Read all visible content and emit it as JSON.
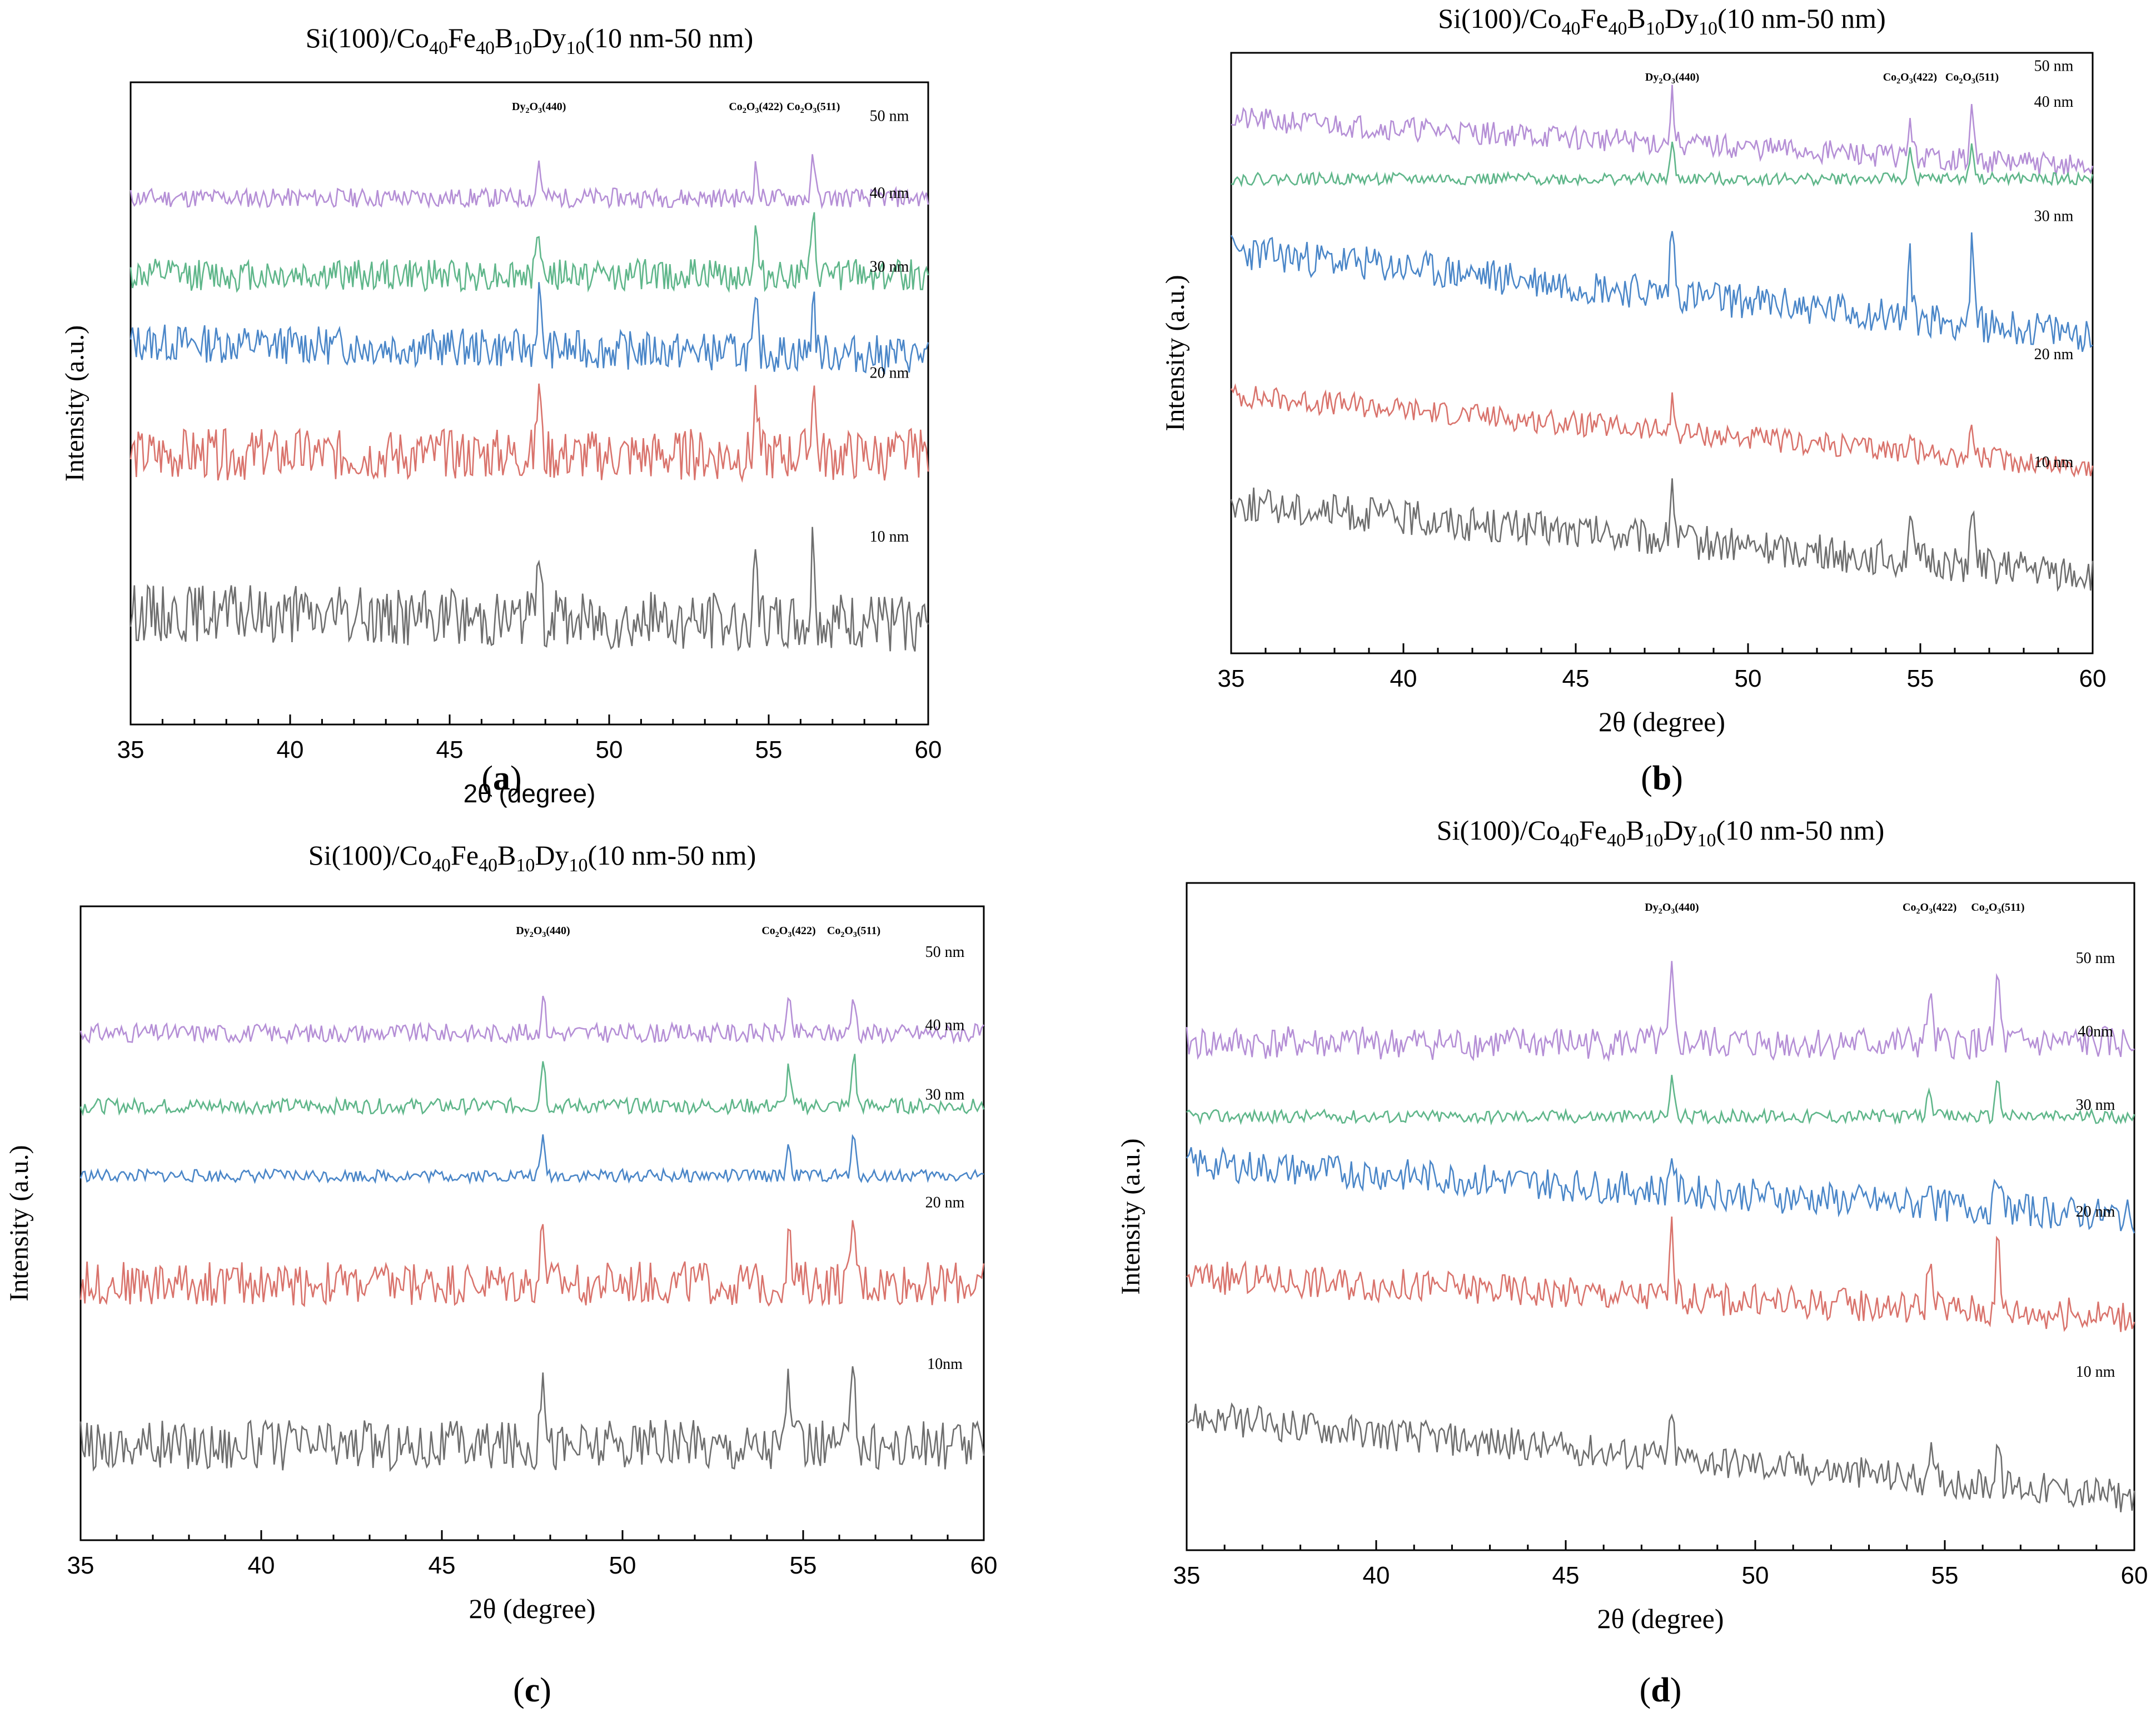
{
  "chart_data": [
    {
      "panel_label": "(a)",
      "type": "line",
      "title": "Si(100)/Co40Fe40B10Dy10(10 nm-50 nm)",
      "title_parts": [
        {
          "t": "Si(100)/Co"
        },
        {
          "t": "40",
          "sub": true
        },
        {
          "t": "Fe"
        },
        {
          "t": "40",
          "sub": true
        },
        {
          "t": "B"
        },
        {
          "t": "10",
          "sub": true
        },
        {
          "t": "Dy"
        },
        {
          "t": "10",
          "sub": true
        },
        {
          "t": "(10 nm-50 nm)"
        }
      ],
      "xlabel": "2θ (degree)",
      "ylabel": "Intensity (a.u.)",
      "xlim": [
        35,
        60
      ],
      "ylim": [
        0,
        100
      ],
      "xticks": [
        35,
        40,
        45,
        50,
        55,
        60
      ],
      "x_tick_labels": [
        "35",
        "40",
        "45",
        "50",
        "55",
        "60"
      ],
      "peak_labels": [
        {
          "x": 47.8,
          "text": "Dy2O3(440)"
        },
        {
          "x": 54.6,
          "text": "Co2O3(422)"
        },
        {
          "x": 56.4,
          "text": "Co2O3(511)"
        }
      ],
      "series": [
        {
          "name": "50 nm",
          "label": "50 nm",
          "color": "#b58fd6",
          "baseline": 82,
          "slope": 0,
          "noise": 1.5,
          "peak": 6,
          "seed": 11
        },
        {
          "name": "40 nm",
          "label": "40 nm",
          "color": "#5fb68a",
          "baseline": 70,
          "slope": 0,
          "noise": 2.5,
          "peak": 8,
          "seed": 12
        },
        {
          "name": "30 nm",
          "label": "30 nm",
          "color": "#4a86c8",
          "baseline": 58.5,
          "slope": 2,
          "noise": 3,
          "peak": 9,
          "seed": 13
        },
        {
          "name": "20 nm",
          "label": "20 nm",
          "color": "#d9736c",
          "baseline": 42,
          "slope": 0,
          "noise": 4,
          "peak": 12,
          "seed": 14
        },
        {
          "name": "10 nm",
          "label": "10 nm",
          "color": "#6e6e6e",
          "baseline": 16.5,
          "slope": 2,
          "noise": 4.5,
          "peak": 13,
          "seed": 15
        }
      ]
    },
    {
      "panel_label": "(b)",
      "type": "line",
      "title": "Si(100)/Co40Fe40B10Dy10(10 nm-50 nm)",
      "title_parts": [
        {
          "t": "Si(100)/Co"
        },
        {
          "t": "40",
          "sub": true
        },
        {
          "t": "Fe"
        },
        {
          "t": "40",
          "sub": true
        },
        {
          "t": "B"
        },
        {
          "t": "10",
          "sub": true
        },
        {
          "t": "Dy"
        },
        {
          "t": "10",
          "sub": true
        },
        {
          "t": "(10 nm-50 nm)"
        }
      ],
      "xlabel": "2θ (degree)",
      "ylabel": "Intensity (a.u.)",
      "xlim": [
        35,
        60
      ],
      "ylim": [
        0,
        100
      ],
      "xticks": [
        35,
        40,
        45,
        50,
        55,
        60
      ],
      "x_tick_labels": [
        "35",
        "40",
        "45",
        "50",
        "55",
        "60"
      ],
      "peak_labels": [
        {
          "x": 47.8,
          "text": "Dy2O3(440)"
        },
        {
          "x": 54.7,
          "text": "Co2O3(422)"
        },
        {
          "x": 56.5,
          "text": "Co2O3(511)"
        }
      ],
      "series": [
        {
          "name": "50 nm",
          "label": "50 nm",
          "color": "#b58fd6",
          "baseline": 85,
          "slope": 8,
          "noise": 2,
          "peak": 8,
          "seed": 21
        },
        {
          "name": "40 nm",
          "label": "40 nm",
          "color": "#5fb68a",
          "baseline": 79,
          "slope": 0,
          "noise": 1,
          "peak": 6,
          "seed": 22
        },
        {
          "name": "30 nm",
          "label": "30 nm",
          "color": "#4a86c8",
          "baseline": 60,
          "slope": 14,
          "noise": 3,
          "peak": 12,
          "seed": 23
        },
        {
          "name": "20 nm",
          "label": "20 nm",
          "color": "#d9736c",
          "baseline": 37,
          "slope": 12,
          "noise": 2,
          "peak": 5,
          "seed": 24
        },
        {
          "name": "10 nm",
          "label": "10 nm",
          "color": "#6e6e6e",
          "baseline": 19,
          "slope": 12,
          "noise": 3,
          "peak": 10,
          "seed": 25
        }
      ]
    },
    {
      "panel_label": "(c)",
      "type": "line",
      "title": "Si(100)/Co40Fe40B10Dy10(10 nm-50 nm)",
      "title_parts": [
        {
          "t": "Si(100)/Co"
        },
        {
          "t": "40",
          "sub": true
        },
        {
          "t": "Fe"
        },
        {
          "t": "40",
          "sub": true
        },
        {
          "t": "B"
        },
        {
          "t": "10",
          "sub": true
        },
        {
          "t": "Dy"
        },
        {
          "t": "10",
          "sub": true
        },
        {
          "t": "(10 nm-50 nm)"
        }
      ],
      "xlabel": "2θ (degree)",
      "ylabel": "Intensity (a.u.)",
      "xlim": [
        35,
        60
      ],
      "ylim": [
        0,
        100
      ],
      "xticks": [
        35,
        40,
        45,
        50,
        55,
        60
      ],
      "x_tick_labels": [
        "35",
        "40",
        "45",
        "50",
        "55",
        "60"
      ],
      "peak_labels": [
        {
          "x": 47.8,
          "text": "Dy2O3(440)"
        },
        {
          "x": 54.6,
          "text": "Co2O3(422)"
        },
        {
          "x": 56.4,
          "text": "Co2O3(511)"
        }
      ],
      "series": [
        {
          "name": "50 nm",
          "label": "50 nm",
          "color": "#b58fd6",
          "baseline": 80,
          "slope": 0,
          "noise": 1.5,
          "peak": 6,
          "seed": 31
        },
        {
          "name": "40 nm",
          "label": "40 nm",
          "color": "#5fb68a",
          "baseline": 68.5,
          "slope": 0,
          "noise": 1.2,
          "peak": 8,
          "seed": 32
        },
        {
          "name": "30 nm",
          "label": "30 nm",
          "color": "#4a86c8",
          "baseline": 57.5,
          "slope": 0,
          "noise": 1,
          "peak": 6,
          "seed": 33
        },
        {
          "name": "20 nm",
          "label": "20 nm",
          "color": "#d9736c",
          "baseline": 40.5,
          "slope": 0,
          "noise": 3.5,
          "peak": 10,
          "seed": 34
        },
        {
          "name": "10 nm",
          "label": "10nm",
          "color": "#6e6e6e",
          "baseline": 15,
          "slope": 0,
          "noise": 4,
          "peak": 15,
          "seed": 35
        }
      ]
    },
    {
      "panel_label": "(d)",
      "type": "line",
      "title": "Si(100)/Co40Fe40B10Dy10(10 nm-50 nm)",
      "title_parts": [
        {
          "t": "Si(100)/Co"
        },
        {
          "t": "40",
          "sub": true
        },
        {
          "t": "Fe"
        },
        {
          "t": "40",
          "sub": true
        },
        {
          "t": "B"
        },
        {
          "t": "10",
          "sub": true
        },
        {
          "t": "Dy"
        },
        {
          "t": "10",
          "sub": true
        },
        {
          "t": "(10 nm-50 nm)"
        }
      ],
      "xlabel": "2θ (degree)",
      "ylabel": "Intensity (a.u.)",
      "xlim": [
        35,
        60
      ],
      "ylim": [
        0,
        100
      ],
      "xticks": [
        35,
        40,
        45,
        50,
        55,
        60
      ],
      "x_tick_labels": [
        "35",
        "40",
        "45",
        "50",
        "55",
        "60"
      ],
      "peak_labels": [
        {
          "x": 47.8,
          "text": "Dy2O3(440)"
        },
        {
          "x": 54.6,
          "text": "Co2O3(422)"
        },
        {
          "x": 56.4,
          "text": "Co2O3(511)"
        }
      ],
      "series": [
        {
          "name": "50 nm",
          "label": "50 nm",
          "color": "#b58fd6",
          "baseline": 76,
          "slope": 0,
          "noise": 2.5,
          "peak": 10,
          "seed": 41
        },
        {
          "name": "40 nm",
          "label": "40nm",
          "color": "#5fb68a",
          "baseline": 65,
          "slope": 0,
          "noise": 1,
          "peak": 6,
          "seed": 42
        },
        {
          "name": "30 nm",
          "label": "30 nm",
          "color": "#4a86c8",
          "baseline": 54,
          "slope": 8,
          "noise": 2.5,
          "peak": 6,
          "seed": 43
        },
        {
          "name": "20 nm",
          "label": "20 nm",
          "color": "#d9736c",
          "baseline": 38,
          "slope": 6,
          "noise": 2.5,
          "peak": 10,
          "seed": 44
        },
        {
          "name": "10 nm",
          "label": "10 nm",
          "color": "#6e6e6e",
          "baseline": 14,
          "slope": 12,
          "noise": 2.5,
          "peak": 6,
          "seed": 45
        }
      ]
    }
  ]
}
